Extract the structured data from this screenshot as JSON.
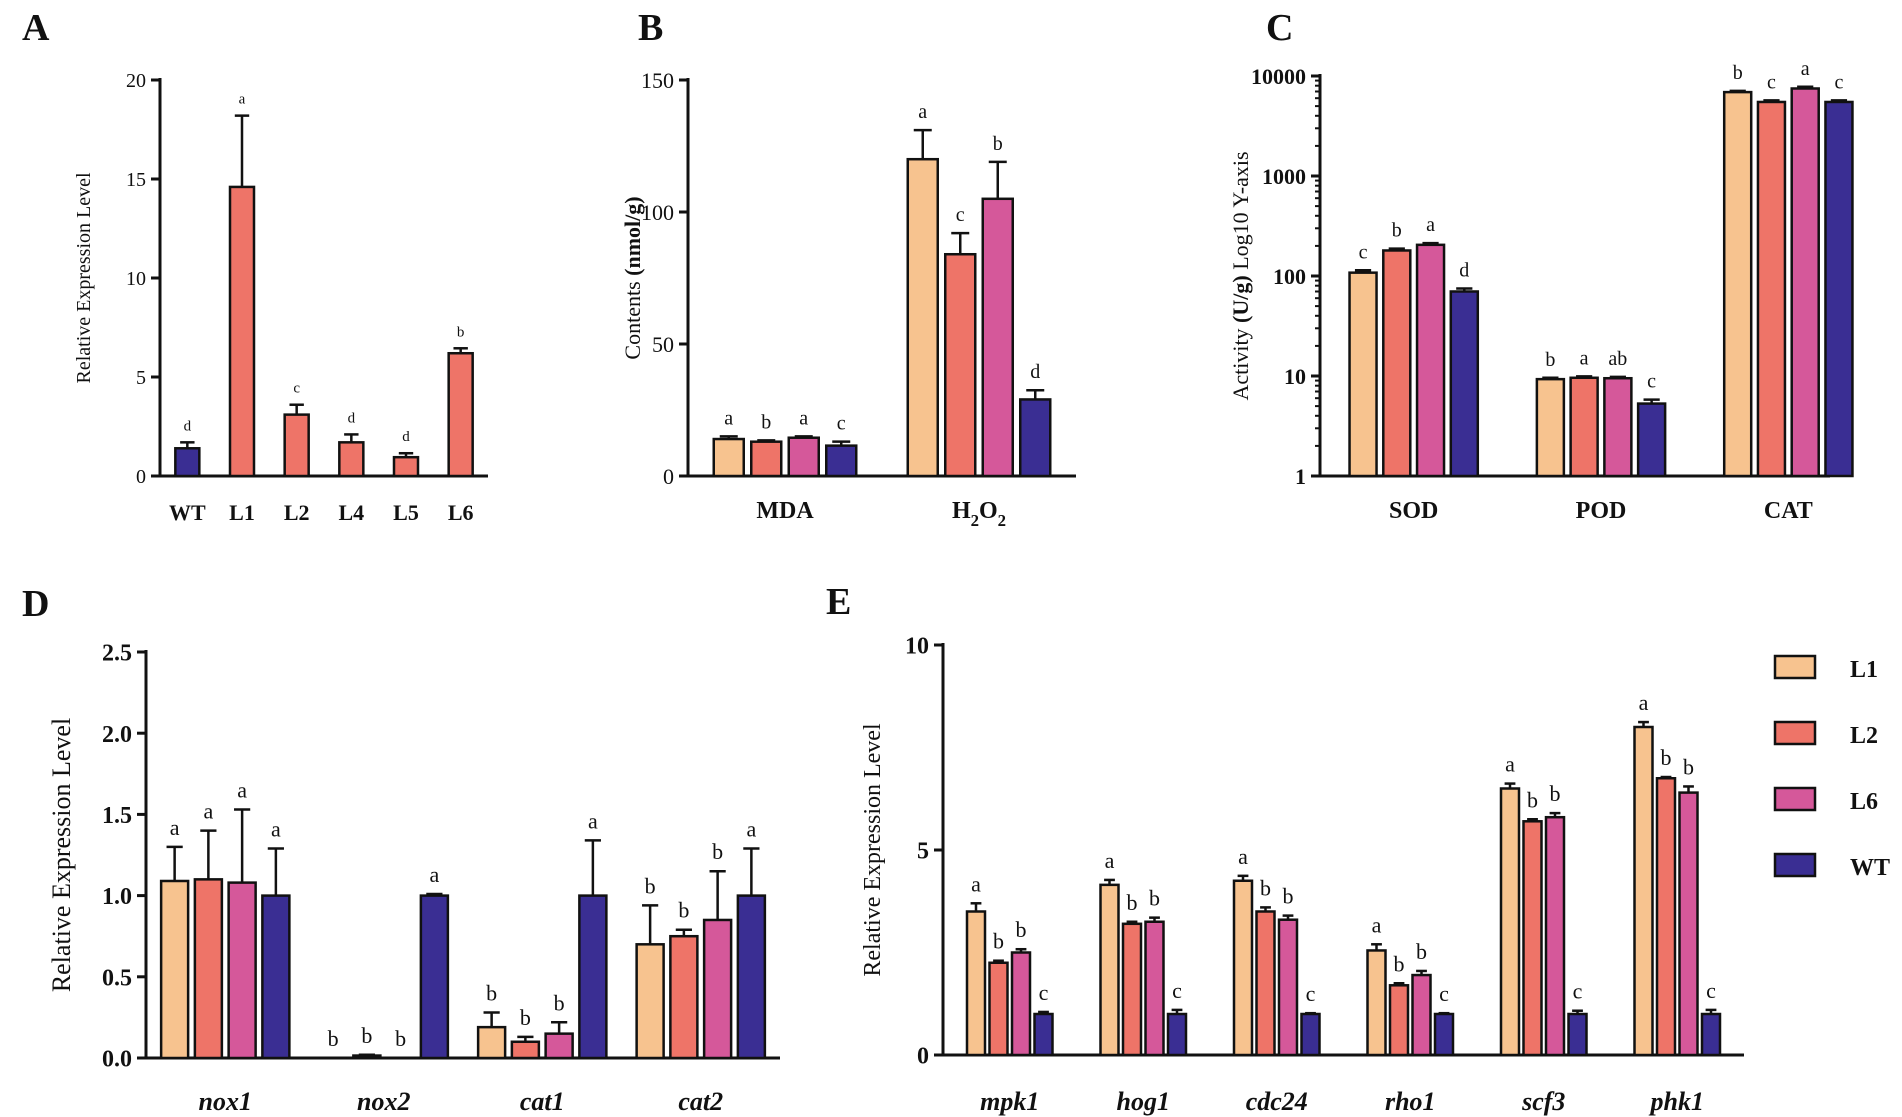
{
  "colors": {
    "L1": "#F7C38F",
    "L2": "#EE7468",
    "L6": "#D5589A",
    "WT": "#3A2E93",
    "L_generic": "#EE7468"
  },
  "legend": {
    "entries": [
      "L1",
      "L2",
      "L6",
      "WT"
    ]
  },
  "chart_data": [
    {
      "panel": "A",
      "type": "bar",
      "title": "",
      "xlabel": "",
      "ylabel": "Relative Expression Level",
      "ylim": [
        0,
        20
      ],
      "yticks": [
        0,
        5,
        10,
        15,
        20
      ],
      "scale": "linear",
      "categories": [
        "WT",
        "L1",
        "L2",
        "L4",
        "L5",
        "L6"
      ],
      "values": [
        1.4,
        14.6,
        3.1,
        1.7,
        0.95,
        6.2
      ],
      "errors": [
        0.3,
        3.6,
        0.5,
        0.4,
        0.2,
        0.25
      ],
      "letters": [
        "d",
        "a",
        "c",
        "d",
        "d",
        "b"
      ]
    },
    {
      "panel": "B",
      "type": "bar",
      "title": "",
      "xlabel": "",
      "ylabel_prefix": "Contents ",
      "ylabel_bold": "(nmol/g)",
      "ylim": [
        0,
        150
      ],
      "yticks": [
        0,
        50,
        100,
        150
      ],
      "scale": "linear",
      "categories": [
        "MDA",
        "H2O2"
      ],
      "category_labels": [
        {
          "main": "MDA",
          "sub": "",
          "main2": "",
          "sub2": ""
        },
        {
          "main": "H",
          "sub": "2",
          "main2": "O",
          "sub2": "2"
        }
      ],
      "series": [
        {
          "name": "L1",
          "values": [
            14,
            120
          ],
          "errors": [
            1,
            11
          ],
          "letters": [
            "a",
            "a"
          ]
        },
        {
          "name": "L2",
          "values": [
            13,
            84
          ],
          "errors": [
            0.5,
            8
          ],
          "letters": [
            "b",
            "c"
          ]
        },
        {
          "name": "L6",
          "values": [
            14.5,
            105
          ],
          "errors": [
            0.5,
            14
          ],
          "letters": [
            "a",
            "b"
          ]
        },
        {
          "name": "WT",
          "values": [
            11.5,
            29
          ],
          "errors": [
            1.5,
            3.5
          ],
          "letters": [
            "c",
            "d"
          ]
        }
      ]
    },
    {
      "panel": "C",
      "type": "bar",
      "title": "",
      "xlabel": "",
      "ylabel_prefix": "Activity ",
      "ylabel_bold": "(U/g)",
      "ylabel_suffix": " Log10 Y-axis",
      "ylim": [
        1,
        10000
      ],
      "yticks": [
        1,
        10,
        100,
        1000,
        10000
      ],
      "scale": "log10",
      "categories": [
        "SOD",
        "POD",
        "CAT"
      ],
      "series": [
        {
          "name": "L1",
          "values": [
            108,
            9.3,
            6900
          ],
          "errors": [
            6,
            0.3,
            200
          ],
          "letters": [
            "c",
            "b",
            "b"
          ]
        },
        {
          "name": "L2",
          "values": [
            180,
            9.6,
            5500
          ],
          "errors": [
            8,
            0.3,
            200
          ],
          "letters": [
            "b",
            "a",
            "c"
          ]
        },
        {
          "name": "L6",
          "values": [
            205,
            9.5,
            7500
          ],
          "errors": [
            8,
            0.3,
            300
          ],
          "letters": [
            "a",
            "ab",
            "a"
          ]
        },
        {
          "name": "WT",
          "values": [
            70,
            5.3,
            5500
          ],
          "errors": [
            5,
            0.5,
            200
          ],
          "letters": [
            "d",
            "c",
            "c"
          ]
        }
      ]
    },
    {
      "panel": "D",
      "type": "bar",
      "title": "",
      "xlabel": "",
      "ylabel": "Relative Expression Level",
      "ylim": [
        0,
        2.5
      ],
      "yticks": [
        "0.0",
        "0.5",
        "1.0",
        "1.5",
        "2.0",
        "2.5"
      ],
      "scale": "linear",
      "categories": [
        "nox1",
        "nox2",
        "cat1",
        "cat2"
      ],
      "series": [
        {
          "name": "L1",
          "values": [
            1.09,
            0.0,
            0.19,
            0.7
          ],
          "errors": [
            0.21,
            0.0,
            0.09,
            0.24
          ],
          "letters": [
            "a",
            "b",
            "b",
            "b"
          ]
        },
        {
          "name": "L2",
          "values": [
            1.1,
            0.015,
            0.1,
            0.75
          ],
          "errors": [
            0.3,
            0.005,
            0.03,
            0.04
          ],
          "letters": [
            "a",
            "b",
            "b",
            "b"
          ]
        },
        {
          "name": "L6",
          "values": [
            1.08,
            0.0,
            0.15,
            0.85
          ],
          "errors": [
            0.45,
            0.0,
            0.07,
            0.3
          ],
          "letters": [
            "a",
            "b",
            "b",
            "b"
          ]
        },
        {
          "name": "WT",
          "values": [
            1.0,
            1.0,
            1.0,
            1.0
          ],
          "errors": [
            0.29,
            0.01,
            0.34,
            0.29
          ],
          "letters": [
            "a",
            "a",
            "a",
            "a"
          ]
        }
      ]
    },
    {
      "panel": "E",
      "type": "bar",
      "title": "",
      "xlabel": "",
      "ylabel": "Relative Expression Level",
      "ylim": [
        0,
        10
      ],
      "yticks": [
        0,
        5,
        10
      ],
      "scale": "linear",
      "categories": [
        "mpk1",
        "hog1",
        "cdc24",
        "rho1",
        "scf3",
        "phk1"
      ],
      "series": [
        {
          "name": "L1",
          "values": [
            3.5,
            4.15,
            4.25,
            2.55,
            6.5,
            8.0
          ],
          "errors": [
            0.2,
            0.12,
            0.12,
            0.15,
            0.12,
            0.12
          ],
          "letters": [
            "a",
            "a",
            "a",
            "a",
            "a",
            "a"
          ]
        },
        {
          "name": "L2",
          "values": [
            2.25,
            3.2,
            3.5,
            1.7,
            5.7,
            6.75
          ],
          "errors": [
            0.05,
            0.05,
            0.1,
            0.05,
            0.05,
            0.03
          ],
          "letters": [
            "b",
            "b",
            "b",
            "b",
            "b",
            "b"
          ]
        },
        {
          "name": "L6",
          "values": [
            2.5,
            3.25,
            3.3,
            1.95,
            5.8,
            6.4
          ],
          "errors": [
            0.08,
            0.1,
            0.1,
            0.1,
            0.1,
            0.15
          ],
          "letters": [
            "b",
            "b",
            "b",
            "b",
            "b",
            "b"
          ]
        },
        {
          "name": "WT",
          "values": [
            1.0,
            1.0,
            1.0,
            1.0,
            1.0,
            1.0
          ],
          "errors": [
            0.05,
            0.1,
            0.02,
            0.02,
            0.08,
            0.1
          ],
          "letters": [
            "c",
            "c",
            "c",
            "c",
            "c",
            "c"
          ]
        }
      ]
    }
  ]
}
